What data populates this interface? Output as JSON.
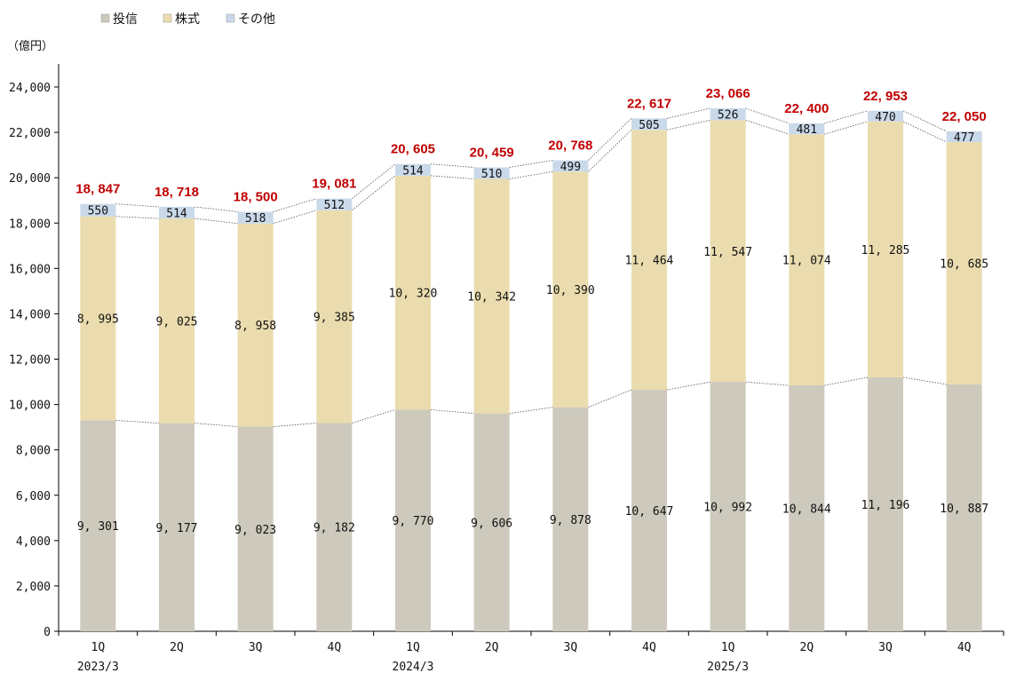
{
  "chart_data": {
    "type": "bar",
    "stacked": true,
    "unit_label": "（億円）",
    "categories": [
      "1Q",
      "2Q",
      "3Q",
      "4Q",
      "1Q",
      "2Q",
      "3Q",
      "4Q",
      "1Q",
      "2Q",
      "3Q",
      "4Q"
    ],
    "period_labels": [
      "2023/3",
      "",
      "",
      "",
      "2024/3",
      "",
      "",
      "",
      "2025/3",
      "",
      "",
      ""
    ],
    "series": [
      {
        "name": "投信",
        "color": "#cdc9bd",
        "values": [
          9301,
          9177,
          9023,
          9182,
          9770,
          9606,
          9878,
          10647,
          10992,
          10844,
          11196,
          10887
        ]
      },
      {
        "name": "株式",
        "color": "#eadcae",
        "values": [
          8995,
          9025,
          8958,
          9385,
          10320,
          10342,
          10390,
          11464,
          11547,
          11074,
          11285,
          10685
        ]
      },
      {
        "name": "その他",
        "color": "#c9d9ea",
        "values": [
          550,
          514,
          518,
          512,
          514,
          510,
          499,
          505,
          526,
          481,
          470,
          477
        ]
      }
    ],
    "totals": [
      18847,
      18718,
      18500,
      19081,
      20605,
      20459,
      20768,
      22617,
      23066,
      22400,
      22953,
      22050
    ],
    "total_color": "#c00000",
    "ylim": [
      0,
      24000
    ],
    "yticks": [
      0,
      2000,
      4000,
      6000,
      8000,
      10000,
      12000,
      14000,
      16000,
      18000,
      20000,
      22000,
      24000
    ],
    "legend_position": "top-left",
    "grid": false
  }
}
